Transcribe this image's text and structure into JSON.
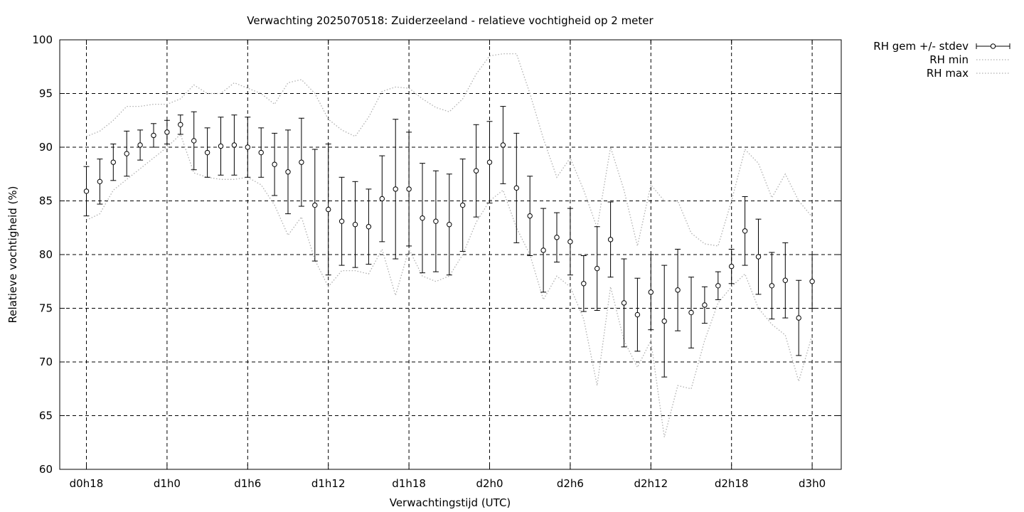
{
  "chart_data": {
    "type": "line",
    "title": "Verwachting 2025070518: Zuiderzeeland - relatieve vochtigheid op 2 meter",
    "xlabel": "Verwachtingstijd (UTC)",
    "ylabel": "Relatieve vochtigheid (%)",
    "ylim": [
      60,
      100
    ],
    "yticks": [
      60,
      65,
      70,
      75,
      80,
      85,
      90,
      95,
      100
    ],
    "xticks": [
      "d0h18",
      "d1h0",
      "d1h6",
      "d1h12",
      "d1h18",
      "d2h0",
      "d2h6",
      "d2h12",
      "d2h18",
      "d3h0"
    ],
    "x_hours": [
      0,
      1,
      2,
      3,
      4,
      5,
      6,
      7,
      8,
      9,
      10,
      11,
      12,
      13,
      14,
      15,
      16,
      17,
      18,
      19,
      20,
      21,
      22,
      23,
      24,
      25,
      26,
      27,
      28,
      29,
      30,
      31,
      32,
      33,
      34,
      35,
      36,
      37,
      38,
      39,
      40,
      41,
      42,
      43,
      44,
      45,
      46,
      47,
      48,
      49,
      50,
      51,
      52,
      53,
      54
    ],
    "grid": true,
    "legend_position": "outside-top-right",
    "series": [
      {
        "name": "RH gem +/- stdev",
        "style": "errorbars",
        "color": "#000000",
        "mean": [
          85.9,
          86.8,
          88.6,
          89.4,
          90.2,
          91.1,
          91.4,
          92.1,
          90.6,
          89.5,
          90.1,
          90.2,
          90.0,
          89.5,
          88.4,
          87.7,
          88.6,
          84.6,
          84.2,
          83.1,
          82.8,
          82.6,
          85.2,
          86.1,
          86.1,
          83.4,
          83.1,
          82.8,
          84.6,
          87.8,
          88.6,
          90.2,
          86.2,
          83.6,
          80.4,
          81.6,
          81.2,
          77.3,
          78.7,
          81.4,
          75.5,
          74.4,
          76.5,
          73.8,
          76.7,
          74.6,
          75.3,
          77.1,
          78.9,
          82.2,
          79.8,
          77.1,
          77.6,
          74.1,
          77.5
        ],
        "stdev": [
          2.3,
          2.1,
          1.7,
          2.1,
          1.4,
          1.1,
          1.1,
          0.9,
          2.7,
          2.3,
          2.7,
          2.8,
          2.8,
          2.3,
          2.9,
          3.9,
          4.1,
          5.2,
          6.1,
          4.1,
          4.0,
          3.5,
          4.0,
          6.5,
          5.3,
          5.1,
          4.7,
          4.7,
          4.3,
          4.3,
          3.8,
          3.6,
          5.1,
          3.7,
          3.9,
          2.3,
          3.1,
          2.6,
          3.9,
          3.5,
          4.1,
          3.4,
          3.5,
          5.2,
          3.8,
          3.3,
          1.7,
          1.3,
          1.6,
          3.2,
          3.5,
          3.1,
          3.5,
          3.5,
          2.5
        ]
      },
      {
        "name": "RH min",
        "style": "dotted",
        "color": "#b0b0b0",
        "values": [
          83.2,
          83.8,
          86.0,
          87.0,
          88.0,
          89.0,
          90.0,
          91.2,
          87.6,
          87.2,
          87.0,
          87.0,
          87.2,
          86.5,
          84.6,
          81.8,
          83.5,
          79.5,
          77.0,
          78.5,
          78.5,
          78.2,
          80.5,
          76.2,
          80.5,
          78.0,
          77.5,
          78.0,
          80.0,
          83.0,
          85.0,
          86.0,
          82.5,
          80.0,
          75.8,
          78.0,
          77.0,
          74.0,
          67.8,
          77.0,
          72.0,
          69.5,
          72.0,
          63.0,
          67.8,
          67.5,
          72.0,
          75.5,
          77.0,
          78.2,
          75.0,
          73.5,
          72.5,
          68.2,
          72.5
        ]
      },
      {
        "name": "RH max",
        "style": "dotted",
        "color": "#b0b0b0",
        "values": [
          91.0,
          91.5,
          92.5,
          93.8,
          93.8,
          94.0,
          94.0,
          94.5,
          95.8,
          95.0,
          95.0,
          96.0,
          95.5,
          95.0,
          94.0,
          96.0,
          96.3,
          95.0,
          92.6,
          91.6,
          91.0,
          92.8,
          95.2,
          95.6,
          95.5,
          94.5,
          93.7,
          93.3,
          94.5,
          96.8,
          98.5,
          98.7,
          98.7,
          95.0,
          90.8,
          87.2,
          89.0,
          86.0,
          82.5,
          90.0,
          86.0,
          80.8,
          86.5,
          85.0,
          85.0,
          82.0,
          81.0,
          80.8,
          85.0,
          89.8,
          88.5,
          85.3,
          87.5,
          85.0,
          83.5
        ]
      }
    ]
  }
}
